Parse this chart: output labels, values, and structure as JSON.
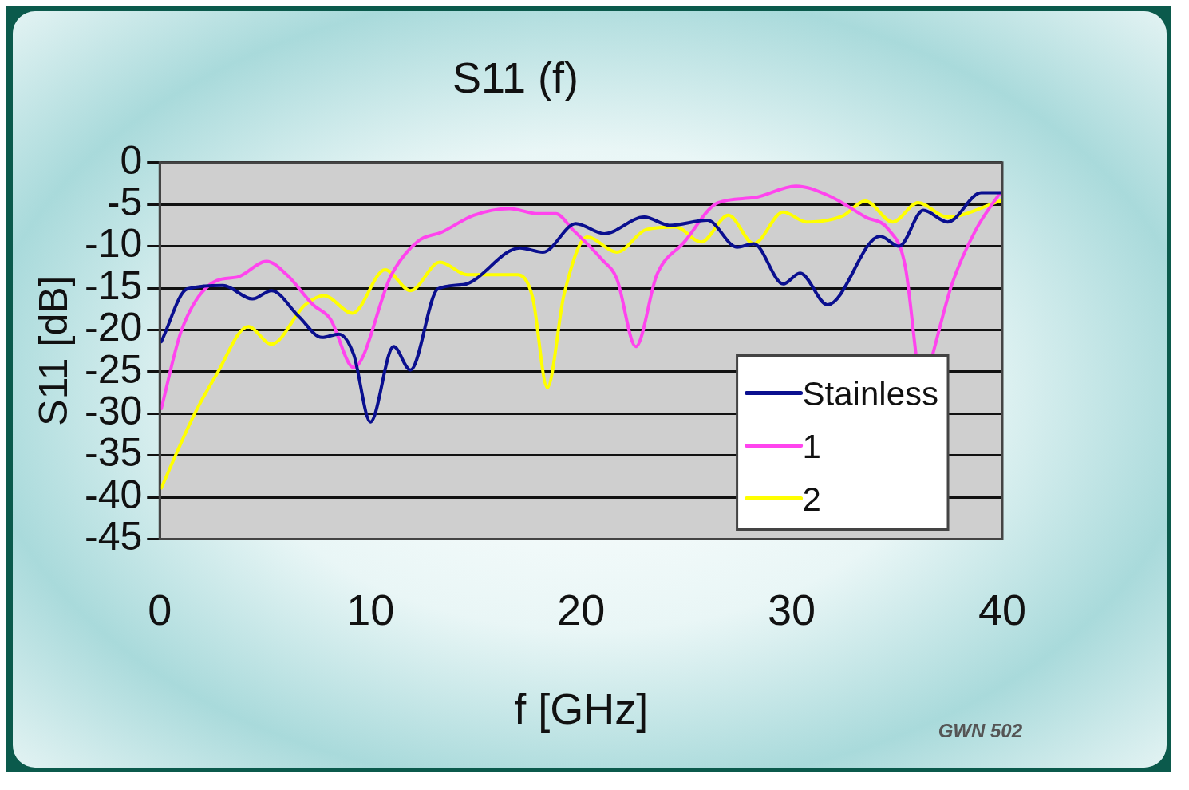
{
  "chart_data": {
    "type": "line",
    "title": "S11 (f)",
    "xlabel": "f [GHz]",
    "ylabel": "S11 [dB]",
    "annotations": [
      "GWN 502"
    ],
    "xlim": [
      0,
      40
    ],
    "xticks": [
      0,
      10,
      20,
      30,
      40
    ],
    "ylim": [
      -45,
      0
    ],
    "yticks": [
      0,
      -5,
      -10,
      -15,
      -20,
      -25,
      -30,
      -35,
      -40,
      -45
    ],
    "grid": "y",
    "legend": "bottom right",
    "line_style": "solid",
    "marker": "none",
    "series": [
      {
        "name": "Stainless",
        "color": "#0a0f8f",
        "x": [
          0.07,
          1.3,
          3.0,
          4.4,
          5.3,
          6.6,
          7.7,
          8.5,
          9.2,
          10.0,
          11.1,
          11.9,
          13.2,
          14.4,
          17.1,
          18.2,
          19.75,
          21.1,
          23.0,
          24.2,
          26.0,
          27.4,
          28.2,
          29.6,
          30.4,
          31.7,
          34.2,
          35.1,
          36.25,
          37.4,
          39.0,
          39.9
        ],
        "values": [
          -21.4,
          -15.1,
          -14.7,
          -16.3,
          -15.3,
          -18.4,
          -20.9,
          -20.5,
          -22.9,
          -31.0,
          -22.0,
          -24.8,
          -15.1,
          -14.6,
          -10.2,
          -10.7,
          -7.3,
          -8.5,
          -6.5,
          -7.5,
          -6.9,
          -10.1,
          -9.7,
          -14.5,
          -13.2,
          -17.0,
          -8.8,
          -10.0,
          -5.7,
          -7.1,
          -3.6,
          -3.6
        ]
      },
      {
        "name": "1",
        "color": "#ff44ee",
        "x": [
          0.07,
          1.05,
          2.7,
          3.66,
          5.07,
          6.03,
          7.28,
          8.1,
          9.2,
          11.0,
          12.26,
          13.4,
          14.9,
          16.6,
          17.95,
          18.8,
          19.6,
          21.0,
          21.7,
          22.6,
          23.6,
          24.9,
          26.5,
          28.2,
          30.2,
          31.8,
          33.5,
          34.6,
          35.4,
          35.9,
          36.3,
          36.7,
          37.6,
          38.75,
          39.9
        ],
        "values": [
          -29.4,
          -19.9,
          -14.1,
          -13.7,
          -11.8,
          -13.4,
          -17.0,
          -18.7,
          -24.5,
          -13.4,
          -9.4,
          -8.3,
          -6.3,
          -5.5,
          -6.1,
          -6.1,
          -8.0,
          -11.6,
          -13.9,
          -22.0,
          -13.4,
          -9.5,
          -4.8,
          -4.2,
          -2.8,
          -4.0,
          -6.5,
          -8.0,
          -12.5,
          -22.9,
          null,
          -22.9,
          -14.6,
          -8.0,
          -3.6
        ]
      },
      {
        "name": "2",
        "color": "#ffff00",
        "x": [
          0.07,
          1.6,
          2.7,
          4.2,
          5.3,
          6.9,
          7.8,
          9.15,
          10.7,
          11.9,
          13.3,
          14.6,
          17.0,
          17.7,
          18.4,
          19.2,
          20.3,
          21.7,
          23.1,
          24.5,
          25.7,
          27.0,
          28.2,
          29.6,
          30.7,
          32.4,
          33.5,
          34.8,
          36.0,
          37.4,
          39.9
        ],
        "values": [
          -38.9,
          -30.3,
          -25.3,
          -19.6,
          -21.7,
          -17.0,
          -15.9,
          -18.0,
          -12.8,
          -15.3,
          -11.9,
          -13.4,
          -13.4,
          -16.1,
          -26.9,
          -15.7,
          -8.9,
          -10.7,
          -8.0,
          -7.7,
          -9.5,
          -6.3,
          -9.7,
          -5.9,
          -7.1,
          -6.4,
          -4.6,
          -7.1,
          -4.8,
          -6.5,
          -4.6
        ]
      }
    ]
  }
}
